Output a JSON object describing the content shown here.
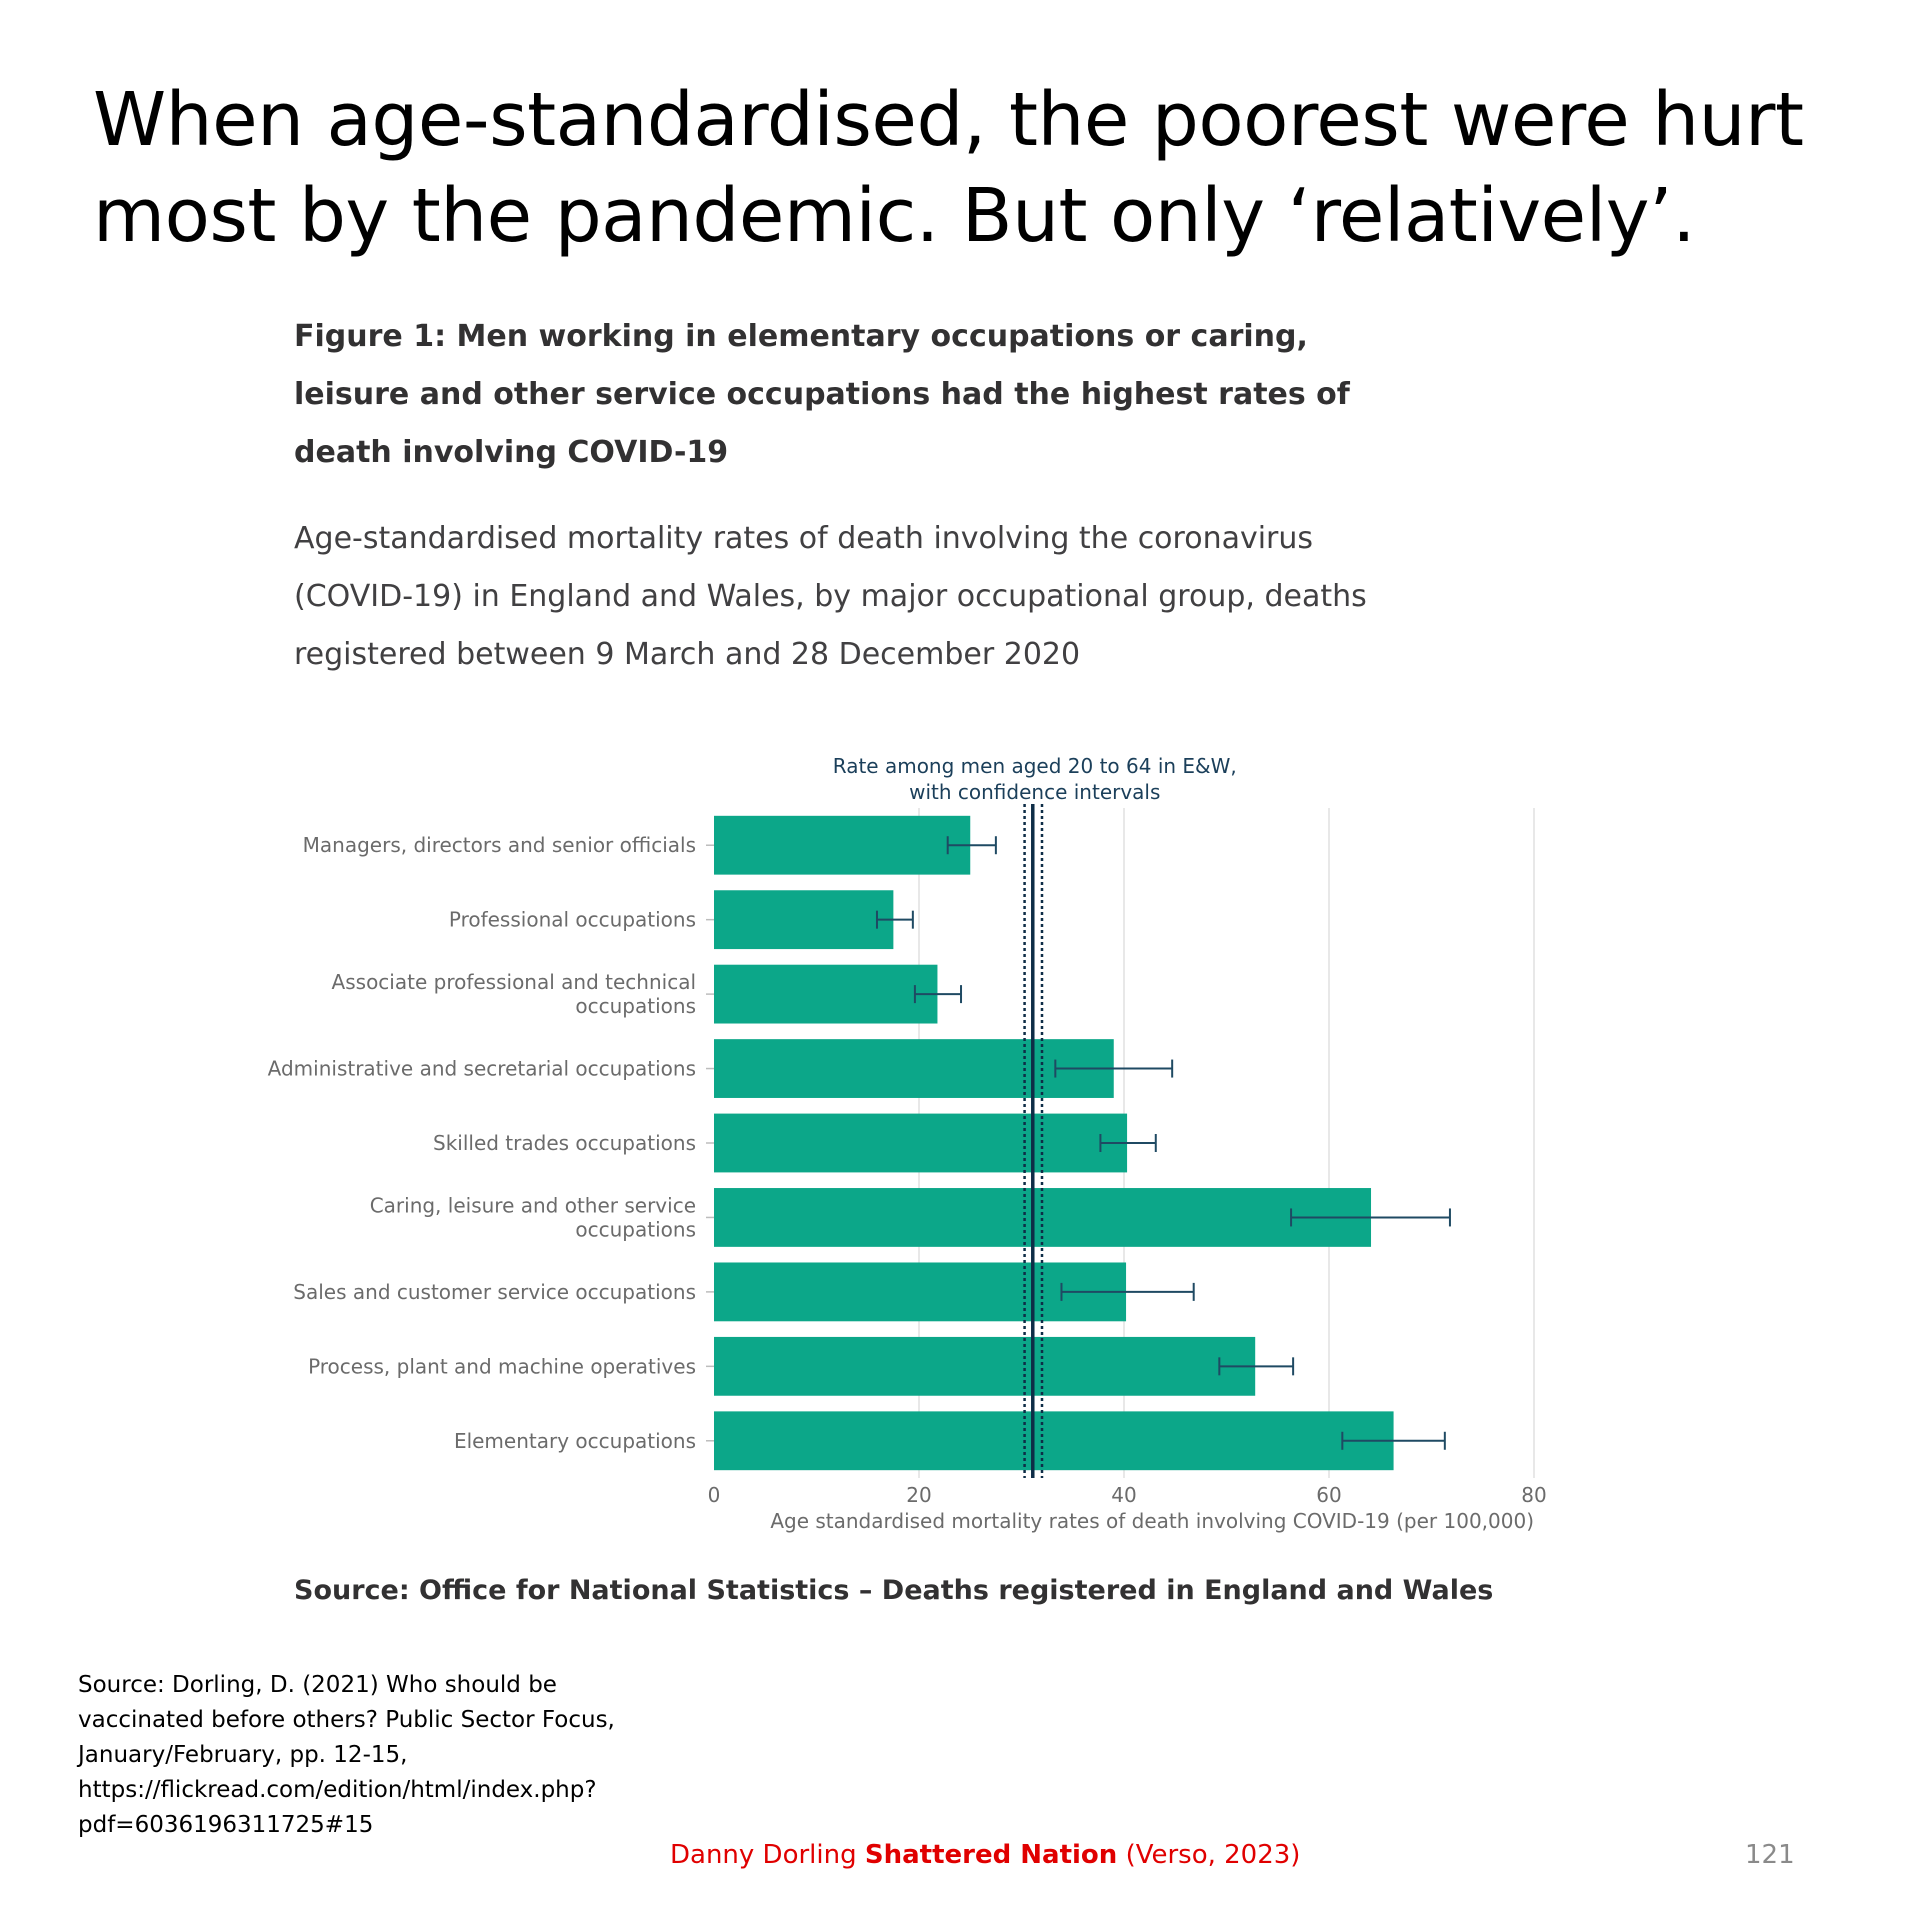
{
  "slide": {
    "title": "When age-standardised, the poorest were hurt most by the pandemic. But only ‘relatively’.",
    "source_ons": "Source: Office for National Statistics – Deaths registered in England and Wales",
    "source_note": "Source: Dorling, D. (2021) Who should be vaccinated before others? Public Sector Focus, January/February, pp. 12-15, https://flickread.com/edition/html/index.php?pdf=6036196311725#15",
    "credit_author": "Danny Dorling",
    "credit_book": "Shattered Nation",
    "credit_publisher": "(Verso, 2023)",
    "page_number": "121"
  },
  "figure": {
    "title": "Figure 1: Men working in elementary occupations or caring, leisure and other service occupations had the highest rates of death involving COVID-19",
    "subtitle": "Age-standardised mortality rates of death involving the coronavirus (COVID-19) in England and Wales, by major occupational group, deaths registered between 9 March and 28 December 2020"
  },
  "chart_data": {
    "type": "bar",
    "orientation": "horizontal",
    "categories": [
      "Managers, directors and senior officials",
      "Professional occupations",
      "Associate professional and technical occupations",
      "Administrative and secretarial occupations",
      "Skilled trades occupations",
      "Caring, leisure and other service occupations",
      "Sales and customer service occupations",
      "Process, plant and machine operatives",
      "Elementary occupations"
    ],
    "values": [
      25.0,
      17.5,
      21.8,
      39.0,
      40.3,
      64.1,
      40.2,
      52.8,
      66.3
    ],
    "ci_lower": [
      22.8,
      15.9,
      19.6,
      33.3,
      37.7,
      56.3,
      33.9,
      49.3,
      61.3
    ],
    "ci_upper": [
      27.5,
      19.4,
      24.1,
      44.7,
      43.1,
      71.8,
      46.8,
      56.5,
      71.3
    ],
    "reference_line": {
      "label": "Rate among men aged 20 to 64 in E&W, with confidence intervals",
      "value": 31.1,
      "ci_lower": 30.3,
      "ci_upper": 32.0
    },
    "xlabel": "Age standardised mortality rates of death involving COVID-19 (per 100,000)",
    "xlim": [
      0,
      80
    ],
    "xticks": [
      0,
      20,
      40,
      60,
      80
    ],
    "grid": "vertical",
    "colors": {
      "bar": "#0ca789",
      "error_bar": "#1f4a63",
      "reference_line": "#0e2d47",
      "grid": "#e0e0e0",
      "label": "#6b6b6b"
    }
  }
}
